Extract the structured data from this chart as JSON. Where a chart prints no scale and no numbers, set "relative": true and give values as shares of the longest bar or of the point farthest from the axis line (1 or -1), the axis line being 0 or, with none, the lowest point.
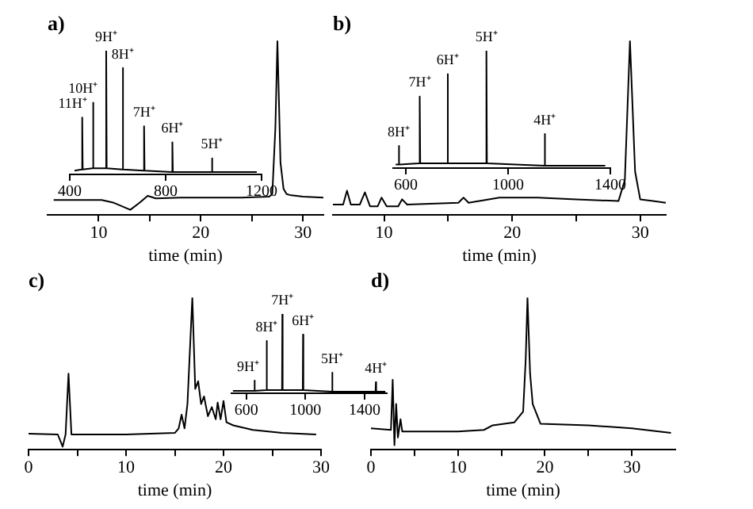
{
  "chart_data": [
    {
      "type": "line",
      "title": "a)",
      "xlabel": "time (min)",
      "relative": true,
      "xlim": [
        5,
        32
      ],
      "xticks": [
        10,
        {
          "value": 15,
          "label": null
        },
        20,
        {
          "value": 25,
          "label": null
        },
        30
      ],
      "series": [
        {
          "color": "#000000",
          "x": [
            5.6,
            10.3,
            11.5,
            13.1,
            14.0,
            14.8,
            15.6,
            18,
            24,
            26.7,
            27.0,
            27.3,
            27.5,
            27.8,
            28.1,
            28.4,
            28.7,
            30,
            32
          ],
          "values": [
            0.086,
            0.086,
            0.07,
            0.03,
            0.07,
            0.11,
            0.095,
            0.1,
            0.1,
            0.105,
            0.12,
            0.5,
            1,
            0.3,
            0.15,
            0.12,
            0.115,
            0.105,
            0.1
          ]
        }
      ]
    },
    {
      "type": "line",
      "relative": true,
      "xlim": [
        400,
        1200
      ],
      "xticks": [
        400,
        800,
        1200
      ],
      "series": [
        {
          "color": "#000000",
          "x": [
            420,
            450,
            452,
            454,
            495,
            497,
            499,
            550,
            552,
            554,
            619,
            621,
            623,
            708,
            710,
            712,
            826,
            828,
            830,
            991,
            993,
            995,
            1180
          ],
          "values": [
            0.03,
            0.04,
            0.46,
            0.04,
            0.05,
            0.58,
            0.05,
            0.05,
            1,
            0.05,
            0.04,
            0.86,
            0.04,
            0.03,
            0.39,
            0.03,
            0.02,
            0.26,
            0.02,
            0.02,
            0.13,
            0.02,
            0.02
          ]
        }
      ],
      "annotations": [
        {
          "text": "11H⁺",
          "x": 452,
          "y": 0.46
        },
        {
          "text": "10H⁺",
          "x": 497,
          "y": 0.58
        },
        {
          "text": "9H⁺",
          "x": 552,
          "y": 1
        },
        {
          "text": "8H⁺",
          "x": 621,
          "y": 0.86
        },
        {
          "text": "7H⁺",
          "x": 710,
          "y": 0.39
        },
        {
          "text": "6H⁺",
          "x": 828,
          "y": 0.26
        },
        {
          "text": "5H⁺",
          "x": 993,
          "y": 0.13
        }
      ]
    },
    {
      "type": "line",
      "title": "b)",
      "xlabel": "time (min)",
      "relative": true,
      "xlim": [
        6,
        32
      ],
      "xticks": [
        10,
        {
          "value": 15,
          "label": null
        },
        20,
        {
          "value": 25,
          "label": null
        },
        30
      ],
      "series": [
        {
          "color": "#000000",
          "x": [
            6,
            6.8,
            7.1,
            7.4,
            8.1,
            8.5,
            8.9,
            9.5,
            9.8,
            10.2,
            11.1,
            11.4,
            11.8,
            15.8,
            16.2,
            16.6,
            19,
            22,
            25,
            28.3,
            28.8,
            29.2,
            29.6,
            30,
            31,
            32
          ],
          "values": [
            0.06,
            0.06,
            0.14,
            0.06,
            0.06,
            0.13,
            0.05,
            0.05,
            0.1,
            0.05,
            0.05,
            0.09,
            0.06,
            0.07,
            0.1,
            0.07,
            0.1,
            0.1,
            0.09,
            0.08,
            0.2,
            1,
            0.25,
            0.09,
            0.08,
            0.07
          ]
        }
      ]
    },
    {
      "type": "line",
      "relative": true,
      "xlim": [
        550,
        1400
      ],
      "xticks": [
        600,
        1000,
        1400
      ],
      "series": [
        {
          "color": "#000000",
          "x": [
            560,
            570,
            572,
            574,
            652,
            654,
            656,
            761,
            763,
            765,
            913,
            915,
            917,
            1141,
            1143,
            1145,
            1380
          ],
          "values": [
            0.03,
            0.03,
            0.19,
            0.03,
            0.04,
            0.61,
            0.04,
            0.04,
            0.8,
            0.04,
            0.04,
            1,
            0.04,
            0.02,
            0.29,
            0.02,
            0.02
          ]
        }
      ],
      "annotations": [
        {
          "text": "8H⁺",
          "x": 572,
          "y": 0.19
        },
        {
          "text": "7H⁺",
          "x": 654,
          "y": 0.61
        },
        {
          "text": "6H⁺",
          "x": 763,
          "y": 0.8
        },
        {
          "text": "5H⁺",
          "x": 915,
          "y": 1
        },
        {
          "text": "4H⁺",
          "x": 1143,
          "y": 0.29
        }
      ]
    },
    {
      "type": "line",
      "title": "c)",
      "xlabel": "time (min)",
      "relative": true,
      "xlim": [
        0,
        30
      ],
      "xticks": [
        0,
        {
          "value": 5,
          "label": null
        },
        10,
        {
          "value": 15,
          "label": null
        },
        20,
        {
          "value": 25,
          "label": null
        },
        30
      ],
      "series": [
        {
          "color": "#000000",
          "x": [
            0,
            3.0,
            3.5,
            3.8,
            4.1,
            4.4,
            5,
            10,
            15,
            15.4,
            15.7,
            16.0,
            16.3,
            16.8,
            17.1,
            17.4,
            17.7,
            18.0,
            18.4,
            18.8,
            19.2,
            19.4,
            19.7,
            20.0,
            20.3,
            21,
            23,
            26,
            29.5
          ],
          "values": [
            0.105,
            0.1,
            0.02,
            0.1,
            0.5,
            0.1,
            0.1,
            0.1,
            0.11,
            0.14,
            0.23,
            0.14,
            0.3,
            1,
            0.4,
            0.45,
            0.3,
            0.35,
            0.22,
            0.28,
            0.2,
            0.31,
            0.2,
            0.32,
            0.18,
            0.16,
            0.13,
            0.11,
            0.1
          ]
        }
      ]
    },
    {
      "type": "line",
      "relative": true,
      "xlim": [
        500,
        1550
      ],
      "xticks": [
        600,
        1000,
        1400
      ],
      "series": [
        {
          "color": "#000000",
          "x": [
            510,
            654,
            656,
            658,
            736,
            738,
            740,
            842,
            844,
            846,
            982,
            984,
            986,
            1179,
            1181,
            1183,
            1474,
            1476,
            1478,
            1540
          ],
          "values": [
            0.03,
            0.03,
            0.16,
            0.03,
            0.04,
            0.66,
            0.04,
            0.04,
            1,
            0.04,
            0.04,
            0.74,
            0.04,
            0.02,
            0.26,
            0.02,
            0.02,
            0.14,
            0.02,
            0.02
          ]
        }
      ],
      "annotations": [
        {
          "text": "9H⁺",
          "x": 656,
          "y": 0.16
        },
        {
          "text": "8H⁺",
          "x": 738,
          "y": 0.66
        },
        {
          "text": "7H⁺",
          "x": 844,
          "y": 1
        },
        {
          "text": "6H⁺",
          "x": 984,
          "y": 0.74
        },
        {
          "text": "5H⁺",
          "x": 1181,
          "y": 0.26
        },
        {
          "text": "4H⁺",
          "x": 1476,
          "y": 0.14
        }
      ]
    },
    {
      "type": "line",
      "title": "d)",
      "xlabel": "time (min)",
      "relative": true,
      "xlim": [
        0,
        35
      ],
      "xticks": [
        0,
        {
          "value": 5,
          "label": null
        },
        10,
        {
          "value": 15,
          "label": null
        },
        20,
        {
          "value": 25,
          "label": null
        },
        30
      ],
      "series": [
        {
          "color": "#000000",
          "x": [
            0,
            2.3,
            2.5,
            2.7,
            2.9,
            3.1,
            3.4,
            3.6,
            10,
            13,
            14,
            16.5,
            17.5,
            17.8,
            18.0,
            18.3,
            18.6,
            19.5,
            25,
            30,
            34.5
          ],
          "values": [
            0.14,
            0.13,
            0.46,
            0.03,
            0.3,
            0.08,
            0.2,
            0.12,
            0.12,
            0.13,
            0.16,
            0.18,
            0.25,
            0.6,
            1,
            0.5,
            0.3,
            0.17,
            0.16,
            0.14,
            0.11
          ]
        }
      ]
    }
  ]
}
